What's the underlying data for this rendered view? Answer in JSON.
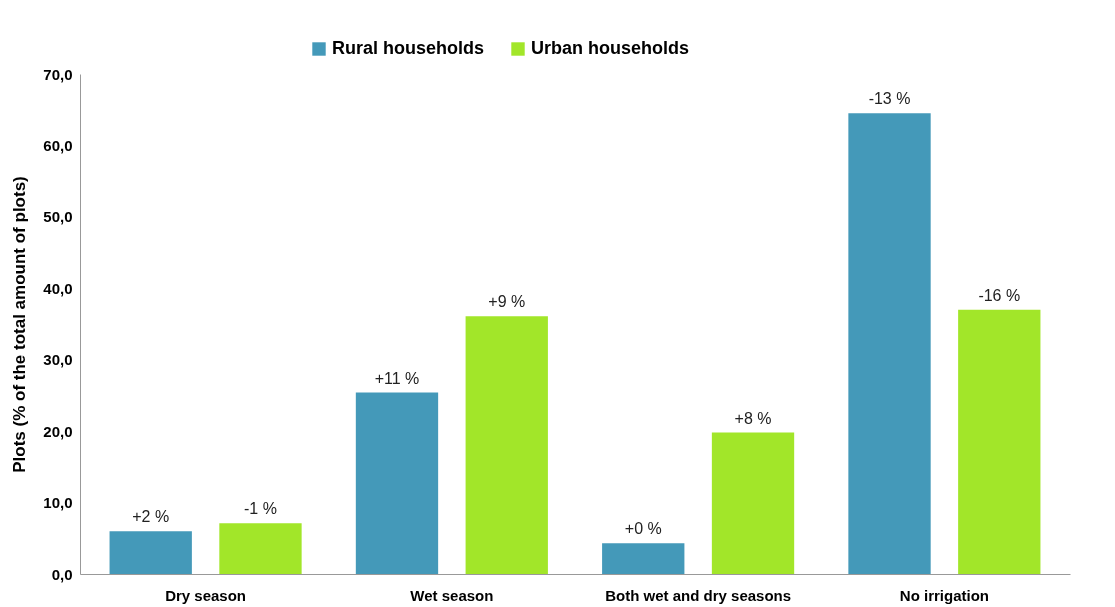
{
  "chart_data": {
    "type": "bar",
    "ylabel": "Plots (% of the total amount of plots)",
    "categories": [
      "Dry season",
      "Wet season",
      "Both wet and dry seasons",
      "No irrigation"
    ],
    "series": [
      {
        "name": "Rural households",
        "color": "#4499b9",
        "values": [
          6.0,
          25.4,
          4.3,
          64.5
        ]
      },
      {
        "name": "Urban households",
        "color": "#a2e629",
        "values": [
          7.1,
          36.1,
          19.8,
          37.0
        ]
      }
    ],
    "annotations": [
      "+2 %",
      "+11 %",
      "+0 %",
      "-13 %",
      "-1 %",
      "+9 %",
      "+8 %",
      "-16 %"
    ],
    "ylim": [
      0,
      70
    ],
    "yticks": [
      {
        "value": 0,
        "label": "0,0"
      },
      {
        "value": 10,
        "label": "10,0"
      },
      {
        "value": 20,
        "label": "20,0"
      },
      {
        "value": 30,
        "label": "30,0"
      },
      {
        "value": 40,
        "label": "40,0"
      },
      {
        "value": 50,
        "label": "50,0"
      },
      {
        "value": 60,
        "label": "60,0"
      },
      {
        "value": 70,
        "label": "70,0"
      }
    ],
    "grid": false,
    "legend": "top"
  }
}
